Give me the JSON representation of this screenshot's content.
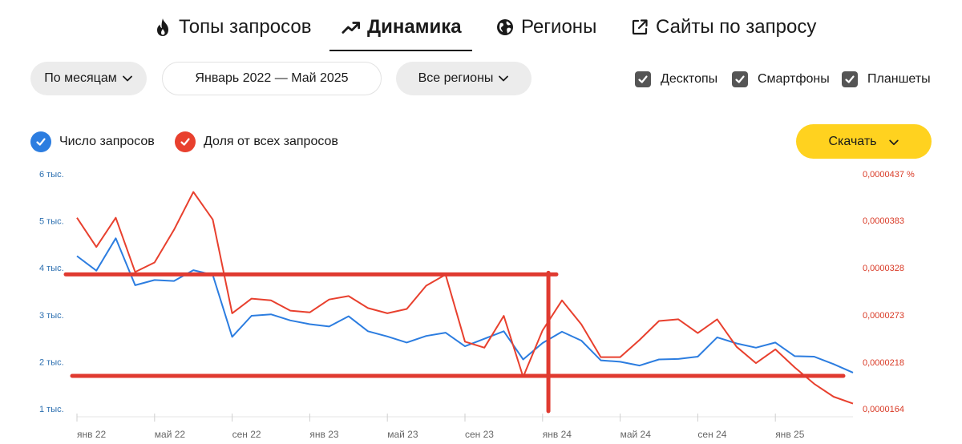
{
  "tabs": [
    {
      "label": "Топы запросов",
      "icon": "fire-icon",
      "active": false
    },
    {
      "label": "Динамика",
      "icon": "trending-up-icon",
      "active": true
    },
    {
      "label": "Регионы",
      "icon": "globe-icon",
      "active": false
    },
    {
      "label": "Сайты по запросу",
      "icon": "external-link-icon",
      "active": false
    }
  ],
  "filters": {
    "period_group": "По месяцам",
    "date_range": "Январь 2022 — Май 2025",
    "region": "Все регионы"
  },
  "devices": [
    {
      "label": "Десктопы",
      "checked": true
    },
    {
      "label": "Смартфоны",
      "checked": true
    },
    {
      "label": "Планшеты",
      "checked": true
    }
  ],
  "legend": [
    {
      "label": "Число запросов",
      "color": "#2c7de0",
      "checked": true
    },
    {
      "label": "Доля от всех запросов",
      "color": "#e8402e",
      "checked": true
    }
  ],
  "download": {
    "label": "Скачать",
    "color": "#ffd21f"
  },
  "chart_data": {
    "type": "line",
    "x_tick_labels": [
      "янв 22",
      "май 22",
      "сен 22",
      "янв 23",
      "май 23",
      "сен 23",
      "янв 24",
      "май 24",
      "сен 24",
      "янв 25"
    ],
    "x_tick_month_index": [
      0,
      4,
      8,
      12,
      16,
      20,
      24,
      28,
      32,
      36
    ],
    "months_count": 41,
    "y_left": {
      "tick_labels": [
        "1 тыс.",
        "2 тыс.",
        "3 тыс.",
        "4 тыс.",
        "5 тыс.",
        "6 тыс."
      ],
      "tick_values": [
        1000,
        2000,
        3000,
        4000,
        5000,
        6000
      ],
      "color": "#2c6fb0",
      "range": [
        1000,
        6000
      ]
    },
    "y_right": {
      "tick_labels": [
        "0,0000164",
        "0,0000218",
        "0,0000273",
        "0,0000328",
        "0,0000383",
        "0,0000437 %"
      ],
      "tick_values": [
        1.64e-05,
        2.18e-05,
        2.73e-05,
        3.28e-05,
        3.83e-05,
        4.37e-05
      ],
      "color": "#d93a26",
      "range": [
        1.64e-05,
        4.37e-05
      ]
    },
    "series": [
      {
        "name": "Число запросов",
        "axis": "left",
        "color": "#2c7de0",
        "values": [
          4250,
          3940,
          4630,
          3630,
          3740,
          3720,
          3950,
          3850,
          2530,
          2980,
          3010,
          2880,
          2800,
          2750,
          2970,
          2650,
          2540,
          2410,
          2550,
          2620,
          2330,
          2490,
          2650,
          2050,
          2400,
          2640,
          2450,
          2030,
          2000,
          1920,
          2050,
          2060,
          2110,
          2520,
          2390,
          2300,
          2410,
          2120,
          2110,
          1950,
          1770
        ]
      },
      {
        "name": "Доля от всех запросов",
        "axis": "right",
        "color": "#e8402e",
        "values": [
          3.86e-05,
          3.52e-05,
          3.86e-05,
          3.23e-05,
          3.34e-05,
          3.72e-05,
          4.16e-05,
          3.84e-05,
          2.75e-05,
          2.92e-05,
          2.9e-05,
          2.78e-05,
          2.76e-05,
          2.91e-05,
          2.95e-05,
          2.81e-05,
          2.75e-05,
          2.8e-05,
          3.07e-05,
          3.2e-05,
          2.42e-05,
          2.35e-05,
          2.72e-05,
          2.01e-05,
          2.55e-05,
          2.9e-05,
          2.62e-05,
          2.24e-05,
          2.24e-05,
          2.44e-05,
          2.66e-05,
          2.68e-05,
          2.52e-05,
          2.68e-05,
          2.36e-05,
          2.17e-05,
          2.33e-05,
          2.12e-05,
          1.93e-05,
          1.78e-05,
          1.7e-05
        ]
      }
    ],
    "annotations": {
      "color": "#e03a30",
      "hlines": [
        3860,
        1700
      ],
      "vline_month_index": 24.3
    },
    "grid": false
  }
}
